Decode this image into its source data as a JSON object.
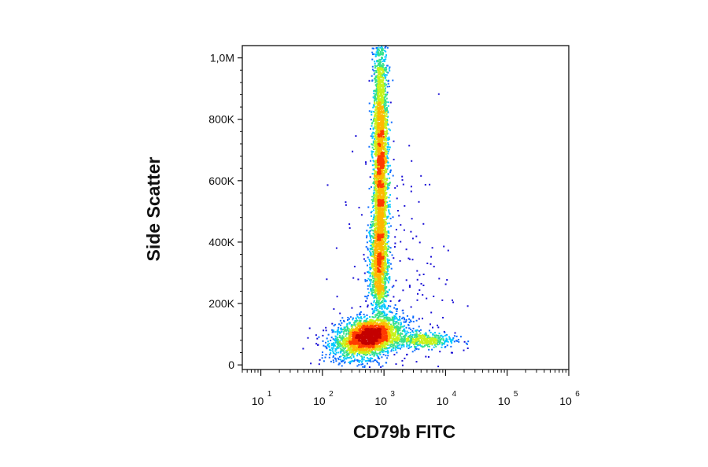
{
  "chart_data": {
    "type": "scatter",
    "style": "density-colored flow cytometry dot plot",
    "xlabel": "CD79b FITC",
    "ylabel": "Side Scatter",
    "x_scale": "log",
    "xlim": [
      5,
      1000000
    ],
    "ylim": [
      -15000,
      1040000
    ],
    "x_ticks": [
      {
        "base": "10",
        "exp": "1",
        "value": 10
      },
      {
        "base": "10",
        "exp": "2",
        "value": 100
      },
      {
        "base": "10",
        "exp": "3",
        "value": 1000
      },
      {
        "base": "10",
        "exp": "4",
        "value": 10000
      },
      {
        "base": "10",
        "exp": "5",
        "value": 100000
      },
      {
        "base": "10",
        "exp": "6",
        "value": 1000000
      }
    ],
    "y_ticks": [
      {
        "label": "0",
        "value": 0
      },
      {
        "label": "200K",
        "value": 200000
      },
      {
        "label": "400K",
        "value": 400000
      },
      {
        "label": "600K",
        "value": 600000
      },
      {
        "label": "800K",
        "value": 800000
      },
      {
        "label": "1,0M",
        "value": 1000000
      }
    ],
    "populations": [
      {
        "x_center": 550,
        "y_center": 90000,
        "x_spread_decades": 0.28,
        "y_spread": 32000,
        "tilt": 0.35,
        "count": 2600
      },
      {
        "x_center": 880,
        "y_center": 650000,
        "x_spread_decades": 0.06,
        "y_spread": 230000,
        "tilt": 0.0,
        "count": 3200
      },
      {
        "x_center": 820,
        "y_center": 330000,
        "x_spread_decades": 0.08,
        "y_spread": 80000,
        "tilt": 0.0,
        "count": 900
      },
      {
        "x_center": 4500,
        "y_center": 80000,
        "x_spread_decades": 0.25,
        "y_spread": 12000,
        "tilt": 0.0,
        "count": 420
      },
      {
        "x_center": 1500,
        "y_center": 200000,
        "x_spread_decades": 0.45,
        "y_spread": 250000,
        "tilt": 0.0,
        "count": 260
      }
    ],
    "density_colors": [
      "#1a0fd6",
      "#0d6bff",
      "#00c8ff",
      "#35e28a",
      "#c8f21a",
      "#ffb800",
      "#ff3b00",
      "#c40000"
    ],
    "grid": false,
    "legend": "none"
  }
}
